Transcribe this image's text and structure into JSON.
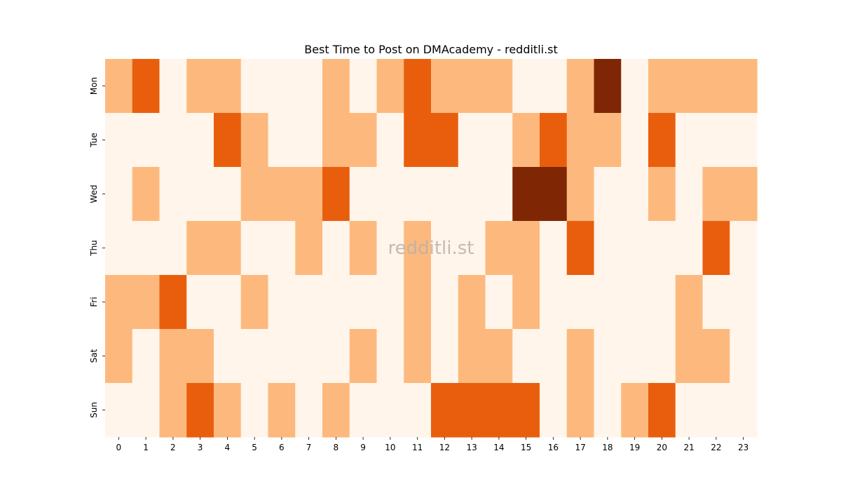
{
  "chart_data": {
    "type": "heatmap",
    "title": "Best Time to Post on DMAcademy - redditli.st",
    "watermark": "redditli.st",
    "x_categories": [
      "0",
      "1",
      "2",
      "3",
      "4",
      "5",
      "6",
      "7",
      "8",
      "9",
      "10",
      "11",
      "12",
      "13",
      "14",
      "15",
      "16",
      "17",
      "18",
      "19",
      "20",
      "21",
      "22",
      "23"
    ],
    "y_categories": [
      "Mon",
      "Tue",
      "Wed",
      "Thu",
      "Fri",
      "Sat",
      "Sun"
    ],
    "values": [
      [
        1,
        2,
        0,
        1,
        1,
        0,
        0,
        0,
        1,
        0,
        1,
        2,
        1,
        1,
        1,
        0,
        0,
        1,
        3,
        0,
        1,
        1,
        1,
        1
      ],
      [
        0,
        0,
        0,
        0,
        2,
        1,
        0,
        0,
        1,
        1,
        0,
        2,
        2,
        0,
        0,
        1,
        2,
        1,
        1,
        0,
        2,
        0,
        0,
        0
      ],
      [
        0,
        1,
        0,
        0,
        0,
        1,
        1,
        1,
        2,
        0,
        0,
        0,
        0,
        0,
        0,
        3,
        3,
        1,
        0,
        0,
        1,
        0,
        1,
        1
      ],
      [
        0,
        0,
        0,
        1,
        1,
        0,
        0,
        1,
        0,
        1,
        0,
        1,
        0,
        0,
        1,
        1,
        0,
        2,
        0,
        0,
        0,
        0,
        2,
        0
      ],
      [
        1,
        1,
        2,
        0,
        0,
        1,
        0,
        0,
        0,
        0,
        0,
        1,
        0,
        1,
        0,
        1,
        0,
        0,
        0,
        0,
        0,
        1,
        0,
        0
      ],
      [
        1,
        0,
        1,
        1,
        0,
        0,
        0,
        0,
        0,
        1,
        0,
        1,
        0,
        1,
        1,
        0,
        0,
        1,
        0,
        0,
        0,
        1,
        1,
        0
      ],
      [
        0,
        0,
        1,
        2,
        1,
        0,
        1,
        0,
        1,
        0,
        0,
        0,
        2,
        2,
        2,
        2,
        0,
        1,
        0,
        1,
        2,
        0,
        0,
        0
      ]
    ],
    "value_range": [
      0,
      3
    ],
    "colormap": [
      "#fff5eb",
      "#fdb97d",
      "#e95e0d",
      "#7f2704"
    ],
    "colorbar": false,
    "grid": false
  }
}
